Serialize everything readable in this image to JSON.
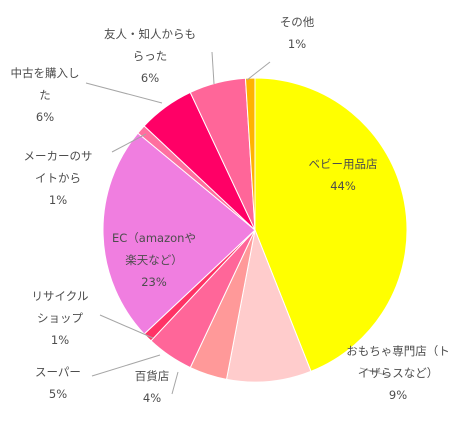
{
  "chart_data": {
    "type": "pie",
    "categories": [
      "ベビー用品店",
      "おもちゃ専門店（トイザらスなど）",
      "百貨店",
      "スーパー",
      "リサイクルショップ",
      "EC（amazonや楽天など）",
      "メーカーのサイトから",
      "中古を購入した",
      "友人・知人からもらった",
      "その他"
    ],
    "values": [
      44,
      9,
      4,
      5,
      1,
      23,
      1,
      6,
      6,
      1
    ],
    "percent_labels": [
      "44%",
      "9%",
      "4%",
      "5%",
      "1%",
      "23%",
      "1%",
      "6%",
      "6%",
      "1%"
    ],
    "colors": [
      "#ffff00",
      "#ffcccc",
      "#ff9999",
      "#ff6699",
      "#ff3366",
      "#f07ee0",
      "#ff6f9f",
      "#ff0066",
      "#ff6699",
      "#ffb300"
    ],
    "label_lines": [
      [
        "ベビー用品店"
      ],
      [
        "おもちゃ専門店（ト",
        "イザらスなど）"
      ],
      [
        "百貨店"
      ],
      [
        "スーパー"
      ],
      [
        "リサイクル",
        "ショップ"
      ],
      [
        "EC（amazonや",
        "楽天など）"
      ],
      [
        "メーカーのサ",
        "イトから"
      ],
      [
        "中古を購入し",
        "た"
      ],
      [
        "友人・知人からも",
        "らった"
      ],
      [
        "その他"
      ]
    ],
    "title": "",
    "legend": "none"
  }
}
